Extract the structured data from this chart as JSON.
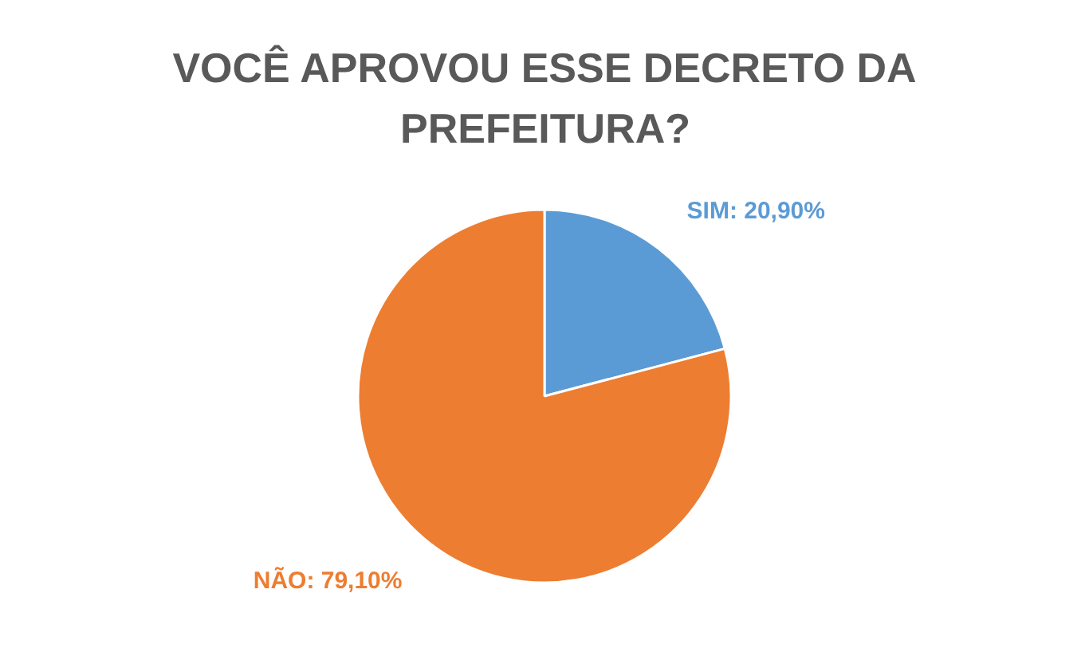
{
  "chart_data": {
    "type": "pie",
    "title": "VOCÊ APROVOU ESSE DECRETO DA PREFEITURA?",
    "categories": [
      "SIM",
      "NÃO"
    ],
    "values": [
      20.9,
      79.1
    ],
    "colors": [
      "#5b9bd5",
      "#ed7d31"
    ],
    "value_labels": [
      "20,90%",
      "79,10%"
    ],
    "legend": false
  }
}
